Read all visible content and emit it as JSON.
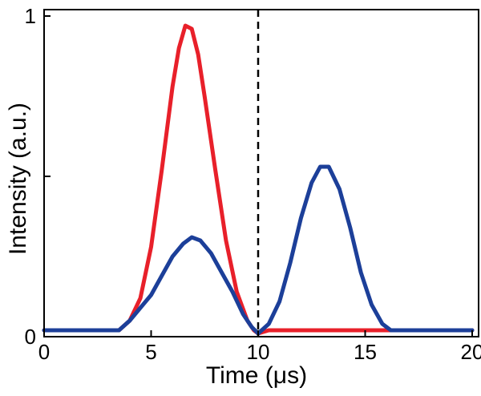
{
  "chart_data": {
    "type": "line",
    "xlabel": "Time (μs)",
    "ylabel": "Intensity (a.u.)",
    "xlim": [
      0,
      20.3
    ],
    "ylim": [
      0,
      1.02
    ],
    "xticks": [
      0,
      5,
      10,
      15,
      20
    ],
    "xtick_labels": [
      "0",
      "5",
      "10",
      "15",
      "20"
    ],
    "yticks": [
      0,
      0.5,
      1
    ],
    "ytick_labels": [
      "0",
      "",
      "1"
    ],
    "grid": false,
    "legend": "none",
    "reference_lines": [
      {
        "axis": "x",
        "value": 10,
        "style": "dashed",
        "color": "#000000"
      }
    ],
    "series": [
      {
        "color": "#e8202a",
        "x": [
          0,
          3.5,
          4.0,
          4.5,
          5.0,
          5.5,
          6.0,
          6.3,
          6.6,
          6.9,
          7.2,
          7.5,
          8.0,
          8.5,
          9.0,
          9.5,
          9.8,
          10.0,
          10.5,
          12,
          14,
          16,
          18,
          20
        ],
        "y": [
          0.02,
          0.02,
          0.05,
          0.12,
          0.28,
          0.52,
          0.78,
          0.9,
          0.97,
          0.96,
          0.88,
          0.75,
          0.52,
          0.3,
          0.14,
          0.05,
          0.02,
          0.01,
          0.02,
          0.02,
          0.02,
          0.02,
          0.02,
          0.02
        ]
      },
      {
        "color": "#1c3f99",
        "x": [
          0,
          3.5,
          4.0,
          4.5,
          5.0,
          5.5,
          6.0,
          6.5,
          6.9,
          7.3,
          7.8,
          8.3,
          8.8,
          9.3,
          9.7,
          10.0,
          10.5,
          11.0,
          11.5,
          12.0,
          12.5,
          12.9,
          13.3,
          13.8,
          14.3,
          14.8,
          15.3,
          15.8,
          16.2,
          17,
          18,
          19,
          20
        ],
        "y": [
          0.02,
          0.02,
          0.05,
          0.09,
          0.13,
          0.19,
          0.25,
          0.29,
          0.31,
          0.3,
          0.26,
          0.2,
          0.14,
          0.07,
          0.03,
          0.01,
          0.04,
          0.11,
          0.23,
          0.37,
          0.48,
          0.53,
          0.53,
          0.46,
          0.34,
          0.2,
          0.1,
          0.04,
          0.02,
          0.02,
          0.02,
          0.02,
          0.02
        ]
      }
    ]
  }
}
